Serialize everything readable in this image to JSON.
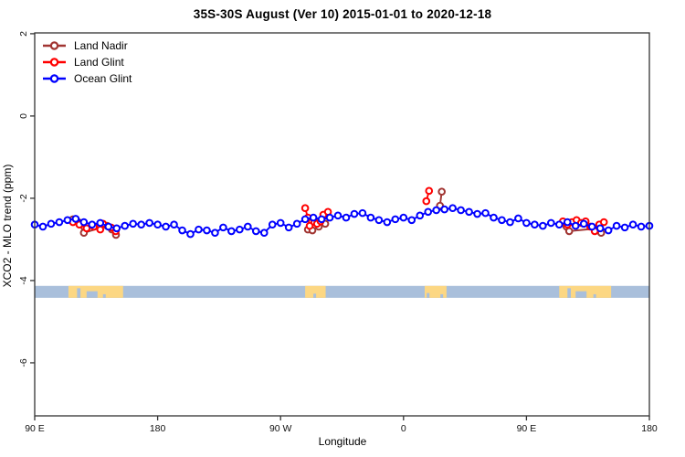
{
  "window": {
    "title": "35S-30S August (Ver 10)   2015-01-01 to 2020-12-18"
  },
  "legend": {
    "items": [
      {
        "label": "Land Nadir",
        "color": "#A13532"
      },
      {
        "label": "Land Glint",
        "color": "#FF0000"
      },
      {
        "label": "Ocean Glint",
        "color": "#0000FF"
      }
    ]
  },
  "chart_data": {
    "type": "line",
    "title": "35S-30S August (Ver 10)   2015-01-01 to 2020-12-18",
    "xlabel": "Longitude",
    "ylabel": "XCO2 - MLO trend (ppm)",
    "grid": false,
    "legend_position": "top-left-inside",
    "x_axis": {
      "description": "longitude wrapped axis, degrees east of 90E over 450 deg span",
      "domain_deg": [
        0,
        450
      ],
      "ticks": [
        {
          "pos": 0,
          "label": "90 E"
        },
        {
          "pos": 90,
          "label": "180"
        },
        {
          "pos": 180,
          "label": "90 W"
        },
        {
          "pos": 270,
          "label": "0"
        },
        {
          "pos": 360,
          "label": "90 E"
        },
        {
          "pos": 450,
          "label": "180"
        }
      ]
    },
    "y_axis": {
      "domain": [
        2.02,
        -7.29
      ],
      "ticks": [
        {
          "pos": 2,
          "label": "2"
        },
        {
          "pos": 0,
          "label": "0"
        },
        {
          "pos": -2,
          "label": "-2"
        },
        {
          "pos": -4,
          "label": "-4"
        },
        {
          "pos": -6,
          "label": "-6"
        }
      ]
    },
    "series": [
      {
        "name": "Land Nadir",
        "color": "#A13532",
        "marker": "open-circle",
        "clusters": [
          [
            [
              28,
              -2.51
            ],
            [
              32,
              -2.58
            ],
            [
              36,
              -2.84
            ],
            [
              53,
              -2.67
            ],
            [
              56.5,
              -2.76
            ],
            [
              59.5,
              -2.89
            ]
          ],
          [
            [
              200,
              -2.76
            ],
            [
              203.3,
              -2.78
            ],
            [
              208,
              -2.69
            ],
            [
              212.7,
              -2.62
            ]
          ],
          [
            [
              296.7,
              -2.18
            ],
            [
              298,
              -1.84
            ]
          ],
          [
            [
              389.3,
              -2.69
            ],
            [
              391.3,
              -2.8
            ],
            [
              412.7,
              -2.73
            ],
            [
              414.7,
              -2.84
            ]
          ]
        ]
      },
      {
        "name": "Land Glint",
        "color": "#FF0000",
        "marker": "open-circle",
        "clusters": [
          [
            [
              28,
              -2.58
            ],
            [
              32.7,
              -2.64
            ],
            [
              38,
              -2.73
            ],
            [
              43.3,
              -2.69
            ],
            [
              48,
              -2.76
            ],
            [
              50,
              -2.62
            ],
            [
              56,
              -2.71
            ],
            [
              59.3,
              -2.8
            ]
          ],
          [
            [
              198,
              -2.24
            ],
            [
              200,
              -2.47
            ],
            [
              201.3,
              -2.67
            ],
            [
              204.7,
              -2.58
            ],
            [
              206.7,
              -2.62
            ],
            [
              209.3,
              -2.56
            ],
            [
              211.3,
              -2.4
            ],
            [
              214.7,
              -2.33
            ]
          ],
          [
            [
              286.7,
              -2.07
            ],
            [
              288.7,
              -1.82
            ]
          ],
          [
            [
              386.7,
              -2.56
            ],
            [
              390,
              -2.64
            ],
            [
              393.3,
              -2.58
            ],
            [
              396.7,
              -2.53
            ],
            [
              400,
              -2.6
            ],
            [
              403.3,
              -2.56
            ],
            [
              406.7,
              -2.69
            ],
            [
              410,
              -2.8
            ],
            [
              413.3,
              -2.64
            ],
            [
              416.7,
              -2.58
            ]
          ]
        ]
      },
      {
        "name": "Ocean Glint",
        "color": "#0000FF",
        "marker": "open-circle",
        "x_start_deg": 0,
        "x_step_deg": 6,
        "values": [
          -2.64,
          -2.69,
          -2.62,
          -2.58,
          -2.53,
          -2.5,
          -2.58,
          -2.64,
          -2.6,
          -2.69,
          -2.73,
          -2.67,
          -2.62,
          -2.64,
          -2.6,
          -2.64,
          -2.69,
          -2.64,
          -2.78,
          -2.87,
          -2.76,
          -2.78,
          -2.84,
          -2.71,
          -2.8,
          -2.76,
          -2.69,
          -2.8,
          -2.84,
          -2.64,
          -2.6,
          -2.71,
          -2.62,
          -2.51,
          -2.47,
          -2.51,
          -2.47,
          -2.42,
          -2.47,
          -2.38,
          -2.36,
          -2.47,
          -2.53,
          -2.58,
          -2.51,
          -2.47,
          -2.53,
          -2.42,
          -2.33,
          -2.29,
          -2.27,
          -2.24,
          -2.29,
          -2.33,
          -2.38,
          -2.36,
          -2.47,
          -2.53,
          -2.58,
          -2.49,
          -2.6,
          -2.64,
          -2.67,
          -2.6,
          -2.64,
          -2.58,
          -2.67,
          -2.62,
          -2.69,
          -2.73,
          -2.78,
          -2.67,
          -2.71,
          -2.64,
          -2.69,
          -2.67
        ]
      }
    ],
    "land_ocean_band": {
      "description": "map strip of the 35S-30S latitude band: ocean vs land along longitude",
      "v_top": -4.13,
      "v_bottom": -4.42,
      "ocean_color": "#A9BFDB",
      "land_color": "#FCD783",
      "land_segments": [
        {
          "name": "australia",
          "u0": 24.7,
          "u1": 64.7,
          "notches": [
            {
              "u0": 31,
              "u1": 33.5,
              "depth": 0.8
            },
            {
              "u0": 38,
              "u1": 46,
              "depth": 0.55
            },
            {
              "u0": 50,
              "u1": 52,
              "depth": 0.3
            }
          ]
        },
        {
          "name": "south-america",
          "u0": 198,
          "u1": 213,
          "notches": [
            {
              "u0": 204,
              "u1": 206,
              "depth": 0.35
            }
          ]
        },
        {
          "name": "south-africa",
          "u0": 285.5,
          "u1": 301.5,
          "notches": [
            {
              "u0": 287,
              "u1": 289,
              "depth": 0.4
            },
            {
              "u0": 297,
              "u1": 299,
              "depth": 0.3
            }
          ]
        },
        {
          "name": "australia-wrap",
          "u0": 384,
          "u1": 422,
          "notches": [
            {
              "u0": 390,
              "u1": 392.5,
              "depth": 0.8
            },
            {
              "u0": 396,
              "u1": 404,
              "depth": 0.55
            },
            {
              "u0": 409,
              "u1": 411,
              "depth": 0.3
            }
          ]
        }
      ]
    }
  },
  "colors": {
    "axis": "#333333",
    "background": "#ffffff",
    "marker_fill": "#ffffff"
  }
}
